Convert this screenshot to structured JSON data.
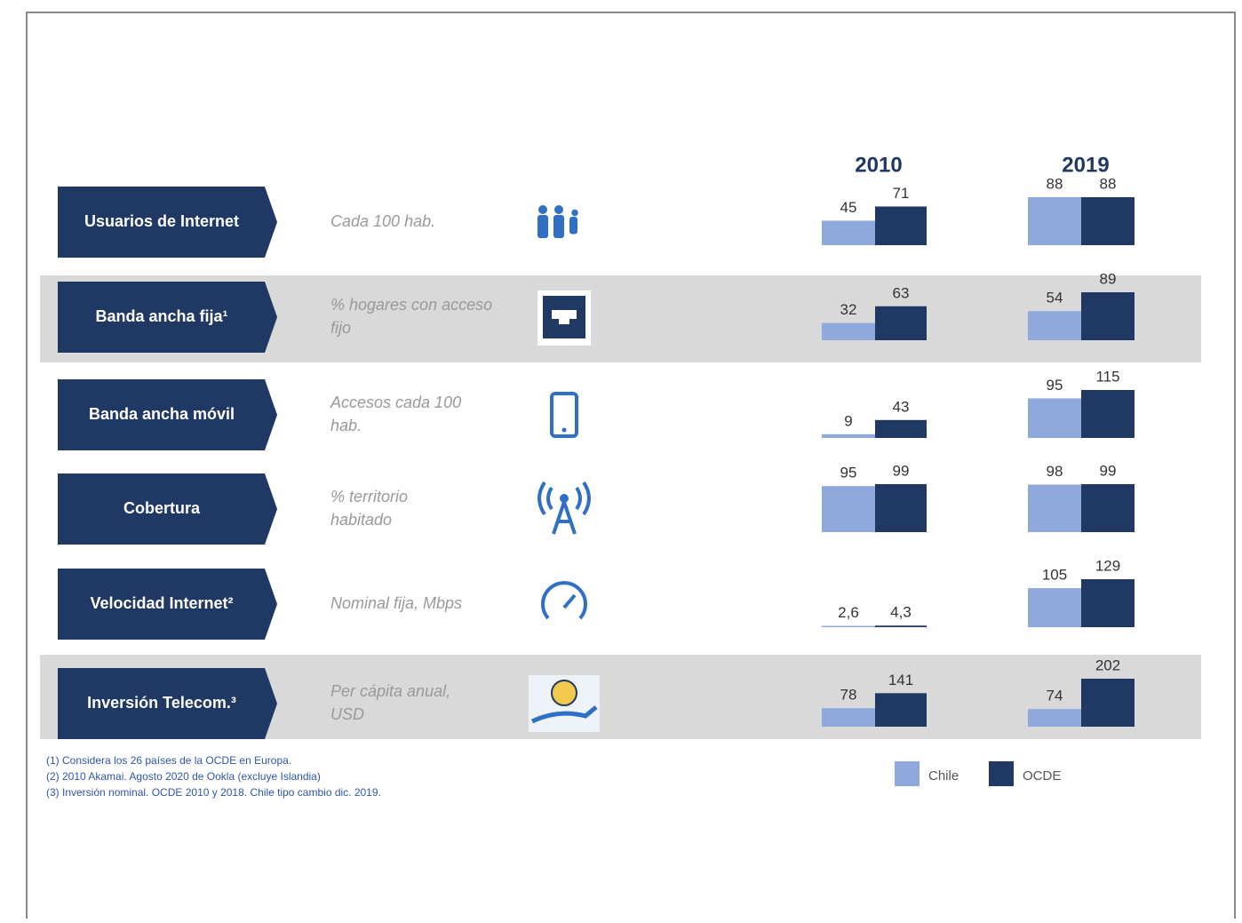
{
  "chart_data": {
    "type": "bar",
    "years": [
      "2010",
      "2019"
    ],
    "categories": [
      "Usuarios de Internet",
      "Banda ancha fija¹",
      "Banda ancha móvil",
      "Cobertura",
      "Velocidad Internet²",
      "Inversión Telecom.³"
    ],
    "descriptions": [
      "Cada 100 hab.",
      "% hogares con acceso fijo",
      "Accesos cada 100 hab.",
      "% territorio habitado",
      "Nominal fija, Mbps",
      "Per cápita anual, USD"
    ],
    "series": [
      {
        "name": "Chile",
        "color": "#8fa9dc",
        "values": [
          [
            45,
            88
          ],
          [
            32,
            54
          ],
          [
            9,
            95
          ],
          [
            95,
            98
          ],
          [
            2.6,
            105
          ],
          [
            78,
            74
          ]
        ],
        "value_labels": [
          [
            "45",
            "88"
          ],
          [
            "32",
            "54"
          ],
          [
            "9",
            "95"
          ],
          [
            "95",
            "98"
          ],
          [
            "2,6",
            "105"
          ],
          [
            "78",
            "74"
          ]
        ]
      },
      {
        "name": "OCDE",
        "color": "#1f3864",
        "values": [
          [
            71,
            88
          ],
          [
            63,
            89
          ],
          [
            43,
            115
          ],
          [
            99,
            99
          ],
          [
            4.3,
            129
          ],
          [
            141,
            202
          ]
        ],
        "value_labels": [
          [
            "71",
            "88"
          ],
          [
            "63",
            "89"
          ],
          [
            "43",
            "115"
          ],
          [
            "99",
            "99"
          ],
          [
            "4,3",
            "129"
          ],
          [
            "141",
            "202"
          ]
        ]
      }
    ],
    "footnotes": [
      "(1) Considera los 26 países de la OCDE en Europa.",
      "(2) 2010 Akamai. Agosto 2020 de Ookla (excluye Islandia)",
      "(3) Inversión nominal. OCDE 2010 y 2018. Chile tipo cambio dic. 2019."
    ]
  }
}
